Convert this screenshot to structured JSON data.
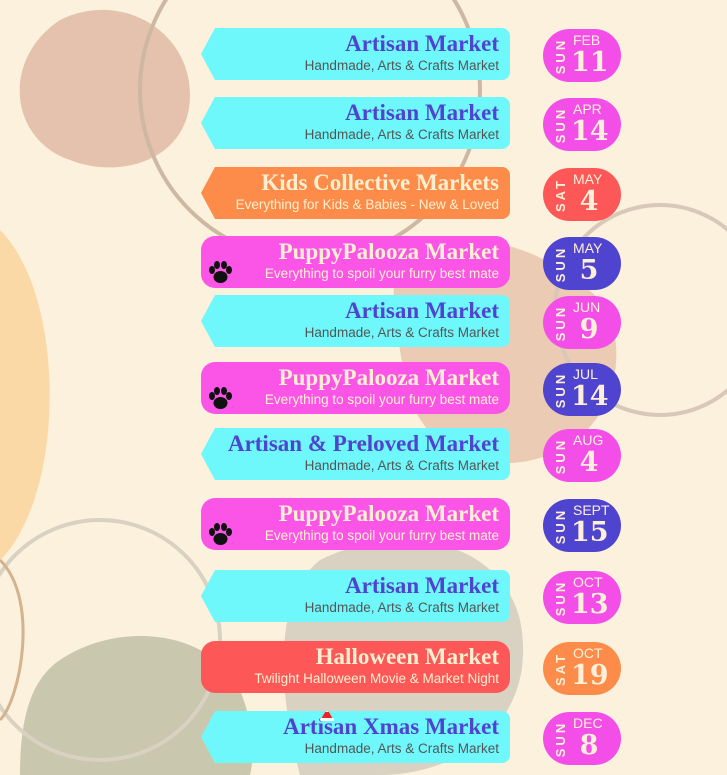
{
  "colors": {
    "background": "#fbf1dc",
    "cyan": "#6ff8fb",
    "orange": "#fd8c4b",
    "pink": "#fb55e8",
    "red": "#fe5757",
    "purple": "#4f44cf",
    "magenta": "#f44ee8",
    "cream": "#fdf0d0"
  },
  "events": [
    {
      "title": "Artisan Market",
      "subtitle": "Handmade, Arts & Crafts Market",
      "dow": "SUN",
      "month": "FEB",
      "day": "11",
      "style": "cyan",
      "date_color": "magenta"
    },
    {
      "title": "Artisan Market",
      "subtitle": "Handmade, Arts & Crafts Market",
      "dow": "SUN",
      "month": "APR",
      "day": "14",
      "style": "cyan",
      "date_color": "magenta"
    },
    {
      "title": "Kids Collective Markets",
      "subtitle": "Everything for Kids & Babies - New & Loved",
      "dow": "SAT",
      "month": "MAY",
      "day": "4",
      "style": "orange",
      "date_color": "red"
    },
    {
      "title": "PuppyPalooza Market",
      "subtitle": "Everything to spoil your furry best mate",
      "dow": "SUN",
      "month": "MAY",
      "day": "5",
      "style": "pink",
      "date_color": "purple",
      "icon": "paw-icon"
    },
    {
      "title": "Artisan Market",
      "subtitle": "Handmade, Arts & Crafts Market",
      "dow": "SUN",
      "month": "JUN",
      "day": "9",
      "style": "cyan",
      "date_color": "magenta"
    },
    {
      "title": "PuppyPalooza Market",
      "subtitle": "Everything to spoil your furry best mate",
      "dow": "SUN",
      "month": "JUL",
      "day": "14",
      "style": "pink",
      "date_color": "purple",
      "icon": "paw-icon"
    },
    {
      "title": "Artisan & Preloved Market",
      "subtitle": "Handmade, Arts & Crafts Market",
      "dow": "SUN",
      "month": "AUG",
      "day": "4",
      "style": "cyan",
      "date_color": "magenta"
    },
    {
      "title": "PuppyPalooza Market",
      "subtitle": "Everything to spoil your furry best mate",
      "dow": "SUN",
      "month": "SEPT",
      "day": "15",
      "style": "pink",
      "date_color": "purple",
      "icon": "paw-icon"
    },
    {
      "title": "Artisan Market",
      "subtitle": "Handmade, Arts & Crafts Market",
      "dow": "SUN",
      "month": "OCT",
      "day": "13",
      "style": "cyan",
      "date_color": "magenta"
    },
    {
      "title": "Halloween Market",
      "subtitle": "Twilight Halloween Movie & Market Night",
      "dow": "SAT",
      "month": "OCT",
      "day": "19",
      "style": "red",
      "date_color": "orange"
    },
    {
      "title": "Artisan Xmas Market",
      "subtitle": "Handmade, Arts & Crafts Market",
      "dow": "SUN",
      "month": "DEC",
      "day": "8",
      "style": "cyan",
      "date_color": "magenta",
      "icon": "santa-hat-icon"
    }
  ]
}
